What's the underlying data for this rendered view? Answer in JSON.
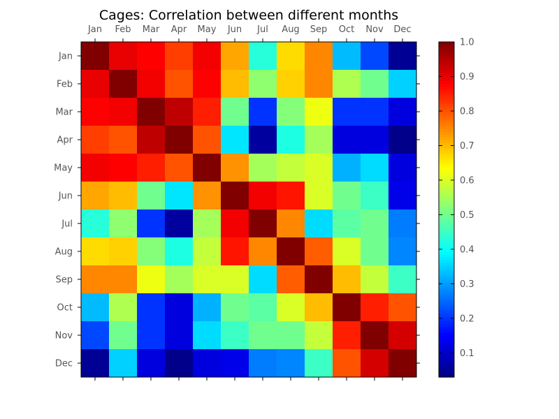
{
  "chart_data": {
    "type": "heatmap",
    "title": "Cages: Correlation between different months",
    "xlabel": "",
    "ylabel": "",
    "x_categories": [
      "Jan",
      "Feb",
      "Mar",
      "Apr",
      "May",
      "Jun",
      "Jul",
      "Aug",
      "Sep",
      "Oct",
      "Nov",
      "Dec"
    ],
    "y_categories": [
      "Jan",
      "Feb",
      "Mar",
      "Apr",
      "May",
      "Jun",
      "Jul",
      "Aug",
      "Sep",
      "Oct",
      "Nov",
      "Dec"
    ],
    "x_tick_position": "top",
    "colormap": "jet",
    "clim": [
      0.03,
      1.0
    ],
    "values": [
      [
        1.0,
        0.9,
        0.88,
        0.82,
        0.89,
        0.72,
        0.43,
        0.67,
        0.75,
        0.33,
        0.22,
        0.05
      ],
      [
        0.9,
        1.0,
        0.89,
        0.8,
        0.88,
        0.7,
        0.53,
        0.68,
        0.75,
        0.56,
        0.5,
        0.35
      ],
      [
        0.88,
        0.89,
        1.0,
        0.94,
        0.85,
        0.5,
        0.2,
        0.52,
        0.62,
        0.2,
        0.2,
        0.12
      ],
      [
        0.82,
        0.8,
        0.94,
        1.0,
        0.8,
        0.37,
        0.06,
        0.42,
        0.55,
        0.12,
        0.12,
        0.04
      ],
      [
        0.89,
        0.88,
        0.85,
        0.8,
        1.0,
        0.74,
        0.55,
        0.58,
        0.6,
        0.32,
        0.36,
        0.12
      ],
      [
        0.72,
        0.7,
        0.5,
        0.37,
        0.74,
        1.0,
        0.89,
        0.86,
        0.6,
        0.5,
        0.45,
        0.13
      ],
      [
        0.43,
        0.53,
        0.2,
        0.06,
        0.55,
        0.89,
        1.0,
        0.75,
        0.36,
        0.48,
        0.5,
        0.27
      ],
      [
        0.67,
        0.68,
        0.52,
        0.42,
        0.58,
        0.86,
        0.75,
        1.0,
        0.79,
        0.6,
        0.5,
        0.28
      ],
      [
        0.75,
        0.75,
        0.62,
        0.55,
        0.6,
        0.6,
        0.36,
        0.79,
        1.0,
        0.7,
        0.58,
        0.45
      ],
      [
        0.33,
        0.56,
        0.2,
        0.12,
        0.32,
        0.5,
        0.48,
        0.6,
        0.7,
        1.0,
        0.85,
        0.8
      ],
      [
        0.22,
        0.5,
        0.2,
        0.12,
        0.36,
        0.45,
        0.5,
        0.5,
        0.58,
        0.85,
        1.0,
        0.92
      ],
      [
        0.05,
        0.35,
        0.12,
        0.04,
        0.12,
        0.13,
        0.27,
        0.28,
        0.45,
        0.8,
        0.92,
        1.0
      ]
    ],
    "colorbar_ticks": [
      0.1,
      0.2,
      0.3,
      0.4,
      0.5,
      0.6,
      0.7,
      0.8,
      0.9,
      1.0
    ],
    "colorbar_labels": [
      "0.1",
      "0.2",
      "0.3",
      "0.4",
      "0.5",
      "0.6",
      "0.7",
      "0.8",
      "0.9",
      "1.0"
    ],
    "grid": false
  }
}
